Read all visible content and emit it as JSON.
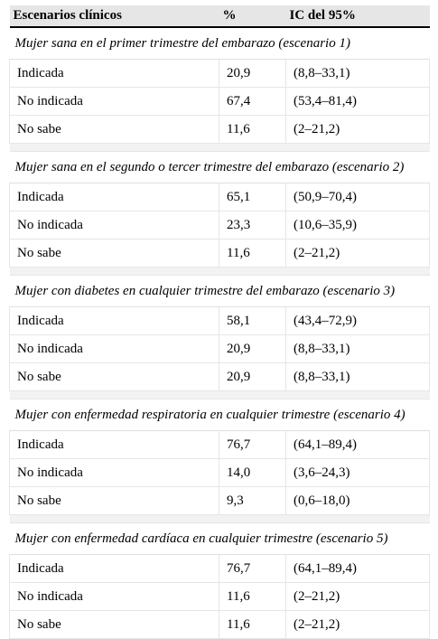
{
  "table": {
    "headers": [
      "Escenarios clínicos",
      "%",
      "IC del 95%"
    ],
    "sections": [
      {
        "title": "Mujer sana en el primer trimestre del embarazo (escenario 1)",
        "rows": [
          [
            "Indicada",
            "20,9",
            "(8,8–33,1)"
          ],
          [
            "No indicada",
            "67,4",
            "(53,4–81,4)"
          ],
          [
            "No sabe",
            "11,6",
            "(2–21,2)"
          ]
        ]
      },
      {
        "title": "Mujer sana en el segundo o tercer trimestre del embarazo (escenario 2)",
        "rows": [
          [
            "Indicada",
            "65,1",
            "(50,9–70,4)"
          ],
          [
            "No indicada",
            "23,3",
            "(10,6–35,9)"
          ],
          [
            "No sabe",
            "11,6",
            "(2–21,2)"
          ]
        ]
      },
      {
        "title": "Mujer con diabetes en cualquier trimestre del embarazo (escenario 3)",
        "rows": [
          [
            "Indicada",
            "58,1",
            "(43,4–72,9)"
          ],
          [
            "No indicada",
            "20,9",
            "(8,8–33,1)"
          ],
          [
            "No sabe",
            "20,9",
            "(8,8–33,1)"
          ]
        ]
      },
      {
        "title": "Mujer con enfermedad respiratoria en cualquier trimestre (escenario 4)",
        "rows": [
          [
            "Indicada",
            "76,7",
            "(64,1–89,4)"
          ],
          [
            "No indicada",
            "14,0",
            "(3,6–24,3)"
          ],
          [
            "No sabe",
            "9,3",
            "(0,6–18,0)"
          ]
        ]
      },
      {
        "title": "Mujer con enfermedad cardíaca en cualquier trimestre (escenario 5)",
        "rows": [
          [
            "Indicada",
            "76,7",
            "(64,1–89,4)"
          ],
          [
            "No indicada",
            "11,6",
            "(2–21,2)"
          ],
          [
            "No sabe",
            "11,6",
            "(2–21,2)"
          ]
        ]
      }
    ]
  }
}
